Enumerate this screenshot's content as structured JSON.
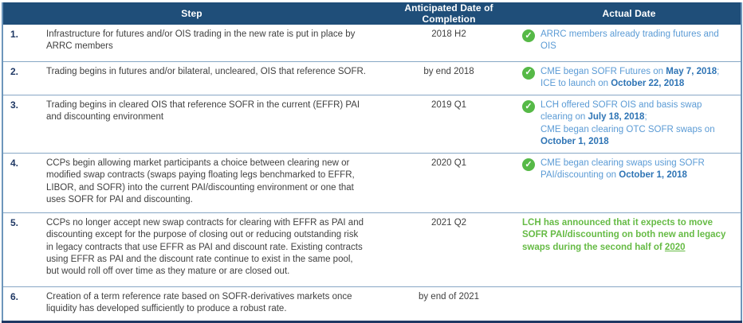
{
  "table": {
    "headers": {
      "step": "Step",
      "anticipated": "Anticipated Date of Completion",
      "actual": "Actual Date"
    },
    "colors": {
      "header_bg": "#1F4E79",
      "header_text": "#FFFFFF",
      "number": "#1F3864",
      "body": "#404040",
      "blue": "#5B9BD5",
      "blue_bold": "#2E74B5",
      "green": "#66BB45",
      "check": "#56B947",
      "border_outer": "#6D96BB",
      "border_row": "#87A7C5",
      "bottom": "#203864"
    },
    "check_icon": {
      "name": "check-circle-icon",
      "glyph": "✓"
    },
    "rows": [
      {
        "num": "1.",
        "step": "Infrastructure for futures and/or OIS trading in the new rate is put in place by ARRC members",
        "anticipated": "2018 H2",
        "check": true,
        "actual": [
          {
            "text": "ARRC members already trading futures and OIS",
            "style": "blue"
          }
        ]
      },
      {
        "num": "2.",
        "step": "Trading begins in futures and/or bilateral, uncleared, OIS that reference SOFR.",
        "anticipated": "by end 2018",
        "check": true,
        "actual": [
          {
            "text": "CME began SOFR Futures on ",
            "style": "blue"
          },
          {
            "text": "May 7, 2018",
            "style": "blue-bold"
          },
          {
            "text": ";",
            "style": "blue"
          },
          {
            "text": "",
            "style": "break"
          },
          {
            "text": "ICE to launch on ",
            "style": "blue"
          },
          {
            "text": "October 22, 2018",
            "style": "blue-bold"
          }
        ]
      },
      {
        "num": "3.",
        "step": "Trading begins in cleared OIS that reference SOFR in the current (EFFR) PAI and discounting environment",
        "anticipated": "2019 Q1",
        "check": true,
        "actual": [
          {
            "text": "LCH offered SOFR OIS and basis swap clearing on ",
            "style": "blue"
          },
          {
            "text": "July 18, 2018",
            "style": "blue-bold"
          },
          {
            "text": ";",
            "style": "blue"
          },
          {
            "text": "",
            "style": "break"
          },
          {
            "text": "CME began clearing OTC SOFR swaps on ",
            "style": "blue"
          },
          {
            "text": "October 1, 2018",
            "style": "blue-bold"
          }
        ]
      },
      {
        "num": "4.",
        "step": "CCPs begin allowing market participants a choice between clearing new or modified swap contracts (swaps paying floating legs benchmarked to EFFR, LIBOR, and SOFR) into the current PAI/discounting environment or one that uses SOFR for PAI and discounting.",
        "anticipated": "2020 Q1",
        "check": true,
        "actual": [
          {
            "text": "CME began clearing swaps using SOFR PAI/discounting on ",
            "style": "blue"
          },
          {
            "text": "October 1, 2018",
            "style": "blue-bold"
          }
        ]
      },
      {
        "num": "5.",
        "step": "CCPs no longer accept new swap contracts for clearing with EFFR as PAI and discounting except for the purpose of closing out or reducing outstanding risk in legacy contracts that use EFFR as PAI and discount rate. Existing contracts using EFFR as PAI and the discount rate continue to exist in the same pool, but would roll off over time as they mature or are closed out.",
        "anticipated": "2021 Q2",
        "check": false,
        "actual": [
          {
            "text": "LCH has announced that it expects to move SOFR PAI/discounting on both new and legacy swaps during the second half of ",
            "style": "green"
          },
          {
            "text": "2020",
            "style": "green-underline"
          }
        ]
      },
      {
        "num": "6.",
        "step": "Creation of a term reference rate based on SOFR-derivatives markets once liquidity has developed sufficiently to produce a robust rate.",
        "anticipated": "by end of 2021",
        "check": false,
        "actual": []
      }
    ]
  }
}
